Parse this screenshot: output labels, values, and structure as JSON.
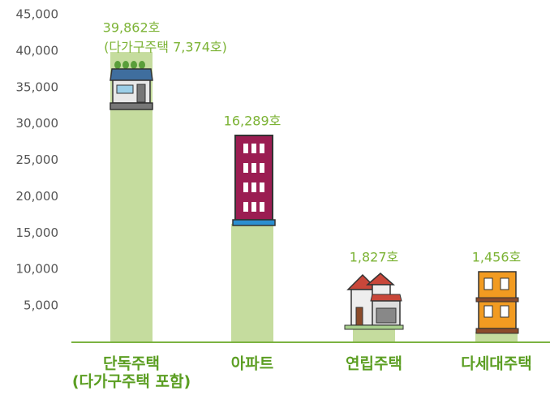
{
  "chart_data": {
    "type": "bar",
    "categories": [
      "단독주택",
      "아파트",
      "연립주택",
      "다세대주택"
    ],
    "values": [
      39862,
      16289,
      1827,
      1456
    ],
    "value_labels": [
      "39,862호",
      "16,289호",
      "1,827호",
      "1,456호"
    ],
    "annotations": [
      "(다가구주택 7,374호)",
      "(다가구주택 포함)"
    ],
    "color": "#c5dc9e",
    "ylim": [
      0,
      45000
    ],
    "yticks": [
      {
        "value": 5000,
        "label": "5,000"
      },
      {
        "value": 10000,
        "label": "10,000"
      },
      {
        "value": 15000,
        "label": "15,000"
      },
      {
        "value": 20000,
        "label": "20,000"
      },
      {
        "value": 25000,
        "label": "25,000"
      },
      {
        "value": 30000,
        "label": "30,000"
      },
      {
        "value": 35000,
        "label": "35,000"
      },
      {
        "value": 40000,
        "label": "40,000"
      },
      {
        "value": 45000,
        "label": "45,000"
      }
    ]
  }
}
